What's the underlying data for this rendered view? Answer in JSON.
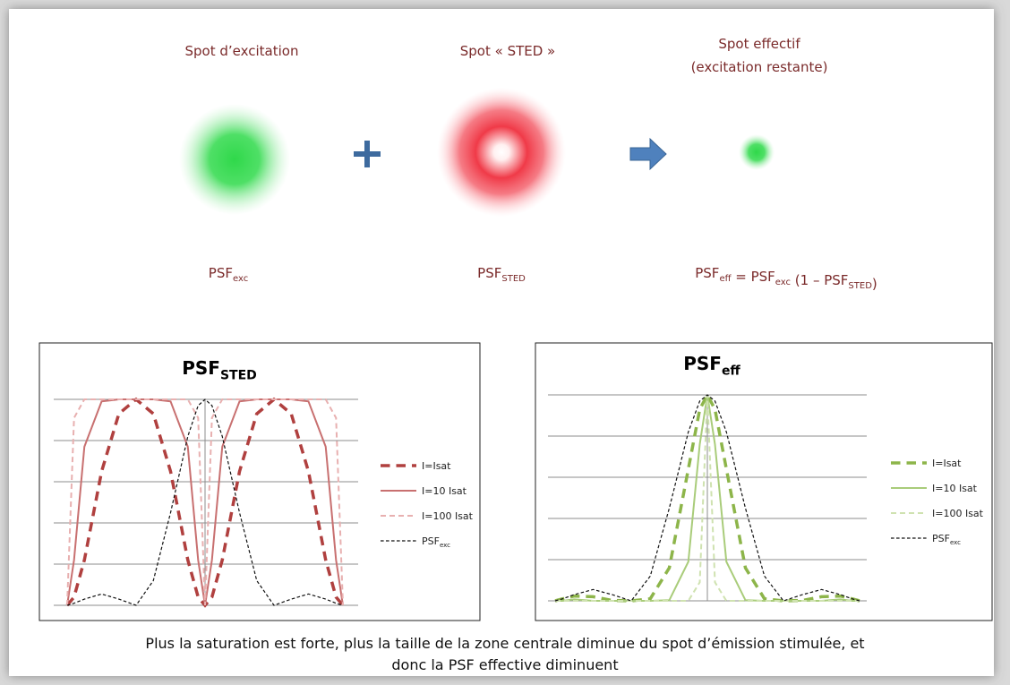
{
  "diagram": {
    "spots": [
      {
        "label": "Spot d’excitation",
        "psf": {
          "main": "PSF",
          "sub": "exc"
        }
      },
      {
        "label": "Spot « STED »",
        "psf": {
          "main": "PSF",
          "sub": "STED"
        }
      },
      {
        "label": "Spot effectif",
        "label2": "(excitation restante)",
        "psf_parts": [
          {
            "main": "PSF",
            "sub": "eff"
          },
          {
            "main": " = PSF",
            "sub": "exc"
          },
          {
            "main": " (1 – PSF",
            "sub": "STED"
          },
          {
            "main": ")",
            "sub": null
          }
        ]
      }
    ],
    "caption": [
      "Plus la saturation est forte, plus la taille de la zone centrale diminue du spot d’émission stimulée, et",
      "donc la PSF effective diminuent"
    ]
  },
  "chart_data": [
    {
      "type": "line",
      "title": {
        "main": "PSF",
        "sub": "STED"
      },
      "x": [
        -2,
        -1.9,
        -1.75,
        -1.5,
        -1.25,
        -1,
        -0.75,
        -0.5,
        -0.25,
        -0.1,
        0,
        0.1,
        0.25,
        0.5,
        0.75,
        1,
        1.25,
        1.5,
        1.75,
        1.9,
        2
      ],
      "xlim": [
        -2,
        2
      ],
      "ylim": [
        0,
        1
      ],
      "yticks": [
        0,
        0.2,
        0.4,
        0.6,
        0.8,
        1
      ],
      "grid": true,
      "series": [
        {
          "name": "I=Isat",
          "color": "#b0403f",
          "line_style": "dashed",
          "line_width": 3.5,
          "values": [
            0,
            0.04,
            0.22,
            0.65,
            0.93,
            1,
            0.93,
            0.65,
            0.22,
            0.04,
            0,
            0.04,
            0.22,
            0.65,
            0.93,
            1,
            0.93,
            0.65,
            0.22,
            0.04,
            0
          ]
        },
        {
          "name": "I=10 Isat",
          "color": "#c87070",
          "line_style": "solid",
          "line_width": 2,
          "values": [
            0,
            0.22,
            0.77,
            0.99,
            1,
            1,
            1,
            0.99,
            0.77,
            0.22,
            0,
            0.22,
            0.77,
            0.99,
            1,
            1,
            1,
            0.99,
            0.77,
            0.22,
            0
          ]
        },
        {
          "name": "I=100 Isat",
          "color": "#e8b0b0",
          "line_style": "dashed",
          "line_width": 2,
          "values": [
            0,
            0.91,
            1,
            1,
            1,
            1,
            1,
            1,
            1,
            0.91,
            0,
            0.91,
            1,
            1,
            1,
            1,
            1,
            1,
            1,
            0.91,
            0
          ]
        },
        {
          "name": "PSF",
          "name_sub": "exc",
          "color": "#111111",
          "line_style": "dashed",
          "line_width": 1.2,
          "values": [
            0,
            0.01,
            0.03,
            0.055,
            0.03,
            0,
            0.12,
            0.45,
            0.82,
            0.97,
            1,
            0.97,
            0.82,
            0.45,
            0.12,
            0,
            0.03,
            0.055,
            0.03,
            0.01,
            0
          ]
        }
      ]
    },
    {
      "type": "line",
      "title": {
        "main": "PSF",
        "sub": "eff"
      },
      "x": [
        -2,
        -1.9,
        -1.75,
        -1.5,
        -1.25,
        -1,
        -0.75,
        -0.5,
        -0.25,
        -0.1,
        0,
        0.1,
        0.25,
        0.5,
        0.75,
        1,
        1.25,
        1.5,
        1.75,
        1.9,
        2
      ],
      "xlim": [
        -2,
        2
      ],
      "ylim": [
        0,
        1
      ],
      "yticks": [
        0,
        0.2,
        0.4,
        0.6,
        0.8,
        1
      ],
      "grid": true,
      "series": [
        {
          "name": "I=Isat",
          "color": "#8db54a",
          "line_style": "dashed",
          "line_width": 3.5,
          "values": [
            0,
            0.01,
            0.023,
            0.02,
            0.002,
            0,
            0.01,
            0.16,
            0.64,
            0.93,
            1,
            0.93,
            0.64,
            0.16,
            0.01,
            0,
            0.002,
            0.02,
            0.023,
            0.01,
            0
          ]
        },
        {
          "name": "I=10 Isat",
          "color": "#a9cc7a",
          "line_style": "solid",
          "line_width": 2,
          "values": [
            0,
            0,
            0.007,
            0,
            0,
            0,
            0,
            0.003,
            0.19,
            0.76,
            1,
            0.76,
            0.19,
            0.003,
            0,
            0,
            0,
            0,
            0.007,
            0,
            0
          ]
        },
        {
          "name": "I=100 Isat",
          "color": "#cfe2b0",
          "line_style": "dashed",
          "line_width": 2,
          "values": [
            0,
            0,
            0,
            0,
            0,
            0,
            0,
            0,
            0,
            0.09,
            1,
            0.09,
            0,
            0,
            0,
            0,
            0,
            0,
            0,
            0,
            0
          ]
        },
        {
          "name": "PSF",
          "name_sub": "exc",
          "color": "#111111",
          "line_style": "dashed",
          "line_width": 1.2,
          "values": [
            0,
            0.01,
            0.03,
            0.055,
            0.03,
            0,
            0.12,
            0.45,
            0.82,
            0.97,
            1,
            0.97,
            0.82,
            0.45,
            0.12,
            0,
            0.03,
            0.055,
            0.03,
            0.01,
            0
          ]
        }
      ]
    }
  ]
}
